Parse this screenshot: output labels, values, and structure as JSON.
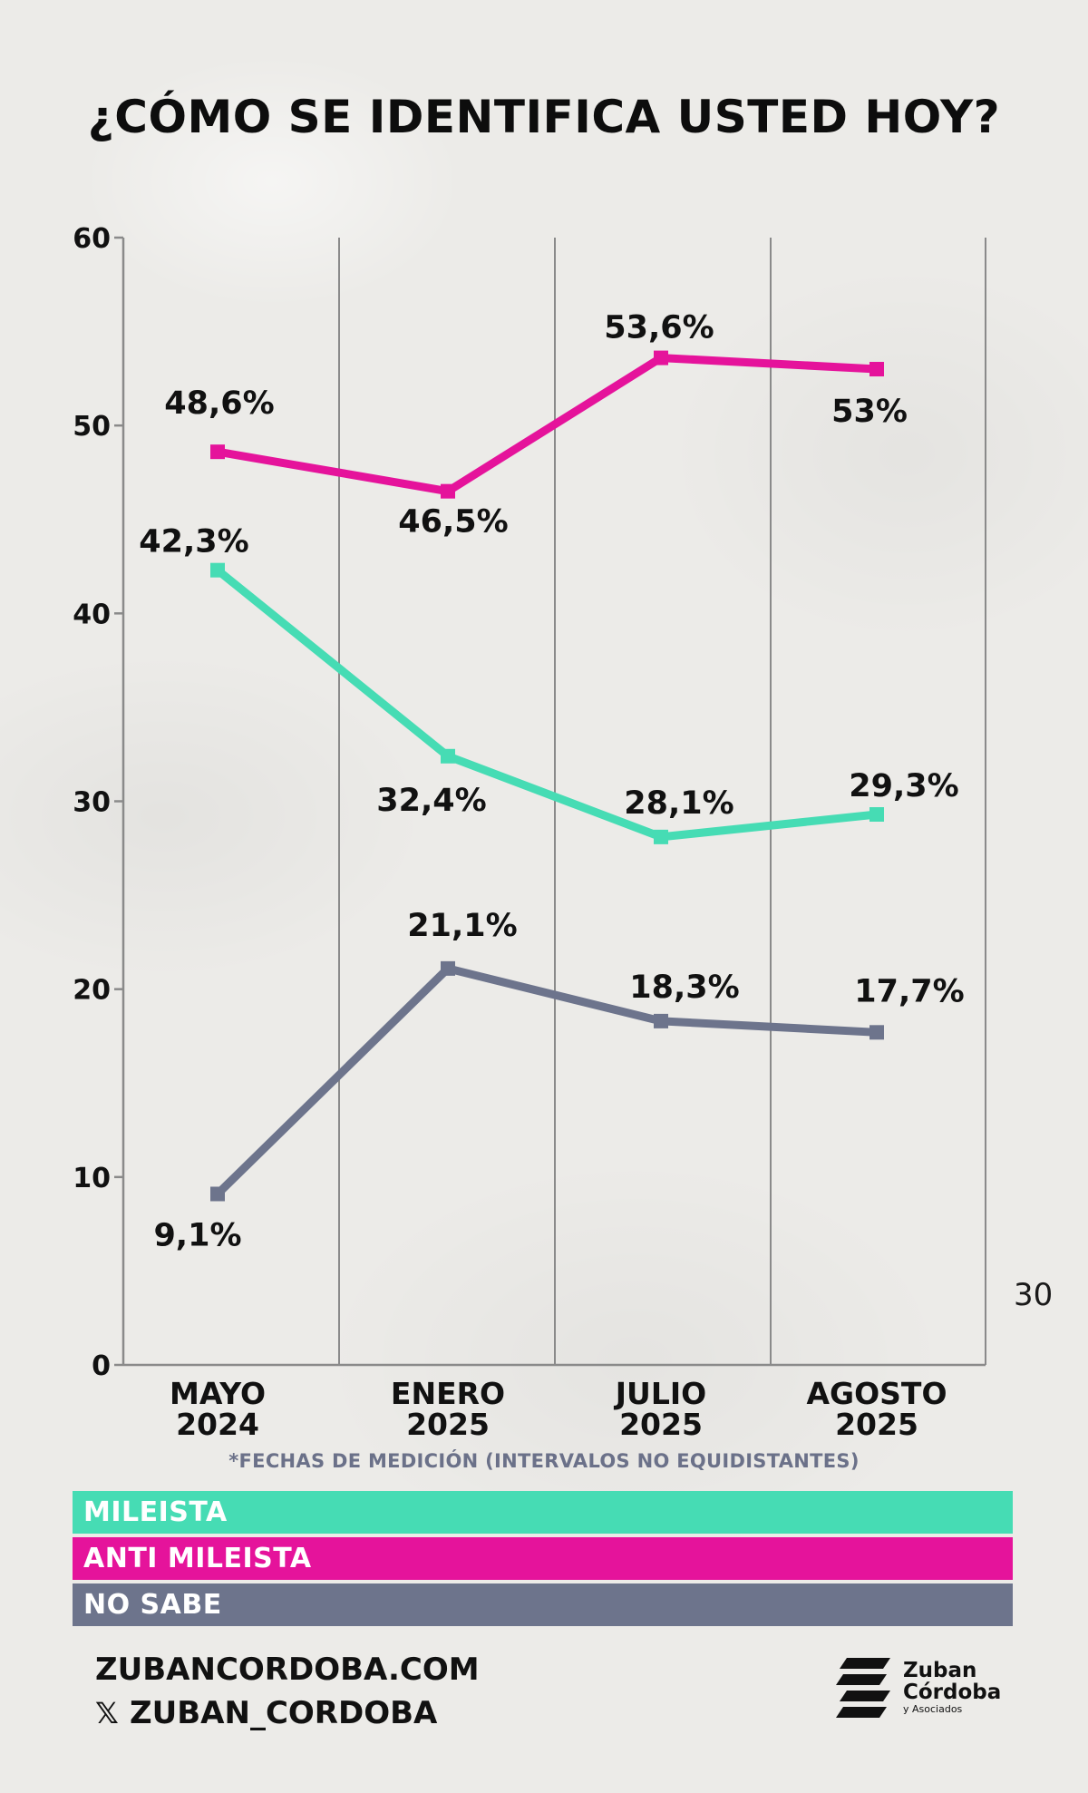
{
  "title": "¿CÓMO SE IDENTIFICA USTED HOY?",
  "page_number": "30",
  "footnote": "*FECHAS DE MEDICIÓN (INTERVALOS NO EQUIDISTANTES)",
  "legend": [
    {
      "label": "MILEISTA",
      "color": "#46dcb4"
    },
    {
      "label": "ANTI MILEISTA",
      "color": "#e5139b"
    },
    {
      "label": "NO SABE",
      "color": "#6d748c"
    }
  ],
  "footer": {
    "website": "ZUBANCORDOBA.COM",
    "handle": "ZUBAN_CORDOBA",
    "handle_icon": "x-logo-icon"
  },
  "brand": {
    "line1": "Zuban",
    "line2": "Córdoba",
    "line3": "y Asociados"
  },
  "chart_data": {
    "type": "line",
    "title": "¿CÓMO SE IDENTIFICA USTED HOY?",
    "categories": [
      [
        "MAYO",
        "2024"
      ],
      [
        "ENERO",
        "2025"
      ],
      [
        "JULIO",
        "2025"
      ],
      [
        "AGOSTO",
        "2025"
      ]
    ],
    "ylim": [
      0,
      60
    ],
    "yticks": [
      0,
      10,
      20,
      30,
      40,
      50,
      60
    ],
    "grid": "vertical",
    "legend_position": "bottom",
    "series": [
      {
        "name": "ANTI MILEISTA",
        "color": "#e5139b",
        "values": [
          48.6,
          46.5,
          53.6,
          53
        ],
        "labels": [
          "48,6%",
          "46,5%",
          "53,6%",
          "53%"
        ]
      },
      {
        "name": "MILEISTA",
        "color": "#46dcb4",
        "values": [
          42.3,
          32.4,
          28.1,
          29.3
        ],
        "labels": [
          "42,3%",
          "32,4%",
          "28,1%",
          "29,3%"
        ]
      },
      {
        "name": "NO SABE",
        "color": "#6d748c",
        "values": [
          9.1,
          21.1,
          18.3,
          17.7
        ],
        "labels": [
          "9,1%",
          "21,1%",
          "18,3%",
          "17,7%"
        ]
      }
    ]
  }
}
